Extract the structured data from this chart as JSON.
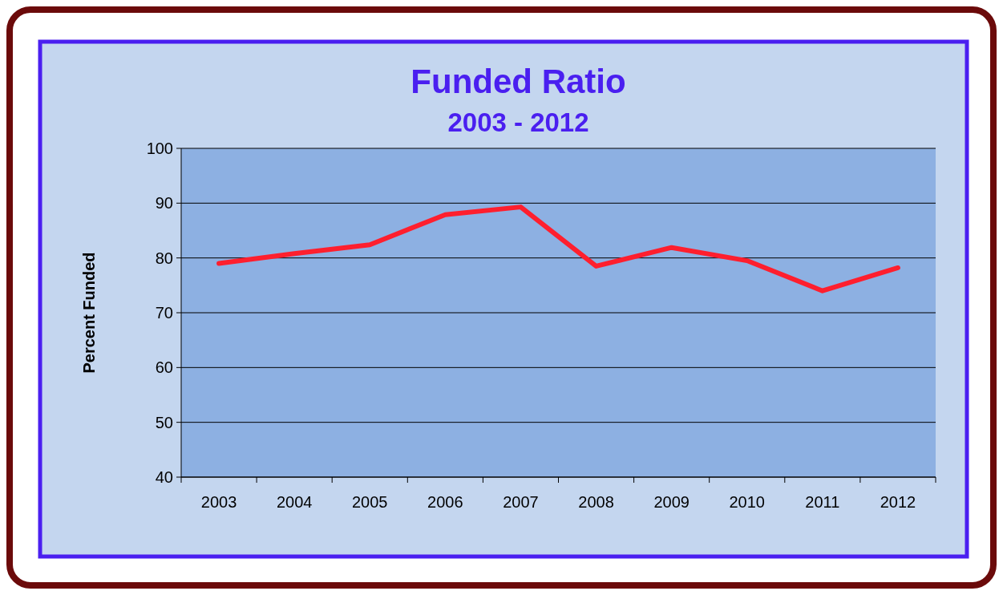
{
  "chart_data": {
    "type": "line",
    "title": "Funded Ratio",
    "subtitle": "2003 - 2012",
    "ylabel": "Percent Funded",
    "categories": [
      "2003",
      "2004",
      "2005",
      "2006",
      "2007",
      "2008",
      "2009",
      "2010",
      "2011",
      "2012"
    ],
    "series": [
      {
        "color": "#ff1f2e",
        "values": [
          79,
          80.8,
          82.4,
          87.9,
          89.3,
          78.5,
          81.9,
          79.5,
          74,
          78.2
        ]
      }
    ],
    "ylim": [
      40,
      100
    ],
    "yticks": [
      40,
      50,
      60,
      70,
      80,
      90,
      100
    ],
    "grid": "y",
    "marker": "none",
    "line_style": "solid"
  }
}
